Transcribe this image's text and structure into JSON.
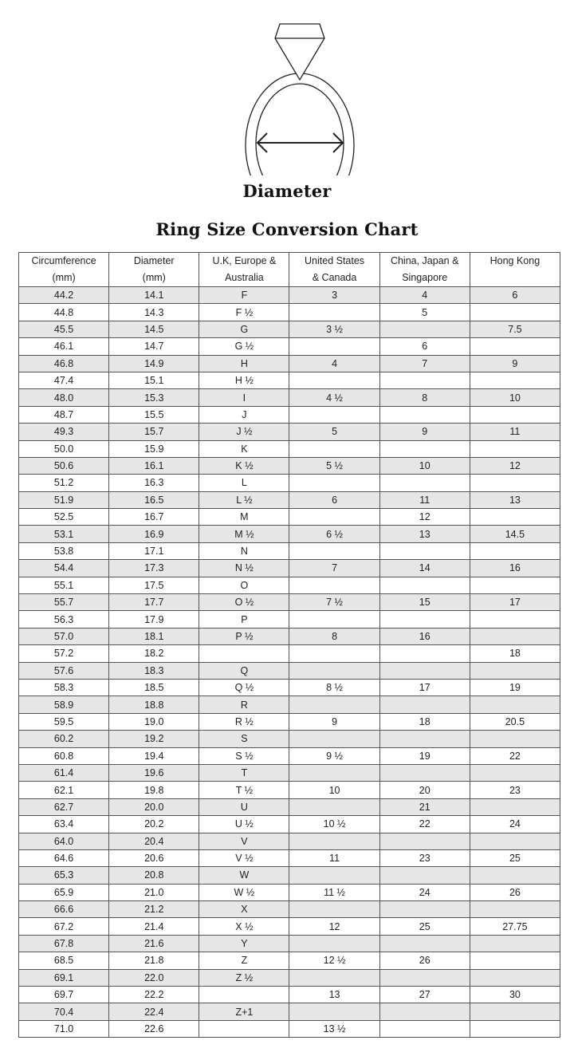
{
  "diagram_label": "Diameter",
  "title": "Ring Size Conversion Chart",
  "colors": {
    "stripe": "#e6e6e6",
    "border": "#555555"
  },
  "columns": [
    [
      "Circumference",
      "(mm)"
    ],
    [
      "Diameter",
      "(mm)"
    ],
    [
      "U.K, Europe &",
      "Australia"
    ],
    [
      "United States",
      "& Canada"
    ],
    [
      "China, Japan &",
      "Singapore"
    ],
    [
      "Hong Kong",
      ""
    ]
  ],
  "rows": [
    [
      "44.2",
      "14.1",
      "F",
      "3",
      "4",
      "6"
    ],
    [
      "44.8",
      "14.3",
      "F ½",
      "",
      "5",
      ""
    ],
    [
      "45.5",
      "14.5",
      "G",
      "3 ½",
      "",
      "7.5"
    ],
    [
      "46.1",
      "14.7",
      "G ½",
      "",
      "6",
      ""
    ],
    [
      "46.8",
      "14.9",
      "H",
      "4",
      "7",
      "9"
    ],
    [
      "47.4",
      "15.1",
      "H ½",
      "",
      "",
      ""
    ],
    [
      "48.0",
      "15.3",
      "I",
      "4 ½",
      "8",
      "10"
    ],
    [
      "48.7",
      "15.5",
      "J",
      "",
      "",
      ""
    ],
    [
      "49.3",
      "15.7",
      "J ½",
      "5",
      "9",
      "11"
    ],
    [
      "50.0",
      "15.9",
      "K",
      "",
      "",
      ""
    ],
    [
      "50.6",
      "16.1",
      "K ½",
      "5 ½",
      "10",
      "12"
    ],
    [
      "51.2",
      "16.3",
      "L",
      "",
      "",
      ""
    ],
    [
      "51.9",
      "16.5",
      "L ½",
      "6",
      "11",
      "13"
    ],
    [
      "52.5",
      "16.7",
      "M",
      "",
      "12",
      ""
    ],
    [
      "53.1",
      "16.9",
      "M ½",
      "6 ½",
      "13",
      "14.5"
    ],
    [
      "53.8",
      "17.1",
      "N",
      "",
      "",
      ""
    ],
    [
      "54.4",
      "17.3",
      "N ½",
      "7",
      "14",
      "16"
    ],
    [
      "55.1",
      "17.5",
      "O",
      "",
      "",
      ""
    ],
    [
      "55.7",
      "17.7",
      "O ½",
      "7 ½",
      "15",
      "17"
    ],
    [
      "56.3",
      "17.9",
      "P",
      "",
      "",
      ""
    ],
    [
      "57.0",
      "18.1",
      "P ½",
      "8",
      "16",
      ""
    ],
    [
      "57.2",
      "18.2",
      "",
      "",
      "",
      "18"
    ],
    [
      "57.6",
      "18.3",
      "Q",
      "",
      "",
      ""
    ],
    [
      "58.3",
      "18.5",
      "Q ½",
      "8 ½",
      "17",
      "19"
    ],
    [
      "58.9",
      "18.8",
      "R",
      "",
      "",
      ""
    ],
    [
      "59.5",
      "19.0",
      "R ½",
      "9",
      "18",
      "20.5"
    ],
    [
      "60.2",
      "19.2",
      "S",
      "",
      "",
      ""
    ],
    [
      "60.8",
      "19.4",
      "S ½",
      "9 ½",
      "19",
      "22"
    ],
    [
      "61.4",
      "19.6",
      "T",
      "",
      "",
      ""
    ],
    [
      "62.1",
      "19.8",
      "T ½",
      "10",
      "20",
      "23"
    ],
    [
      "62.7",
      "20.0",
      "U",
      "",
      "21",
      ""
    ],
    [
      "63.4",
      "20.2",
      "U ½",
      "10 ½",
      "22",
      "24"
    ],
    [
      "64.0",
      "20.4",
      "V",
      "",
      "",
      ""
    ],
    [
      "64.6",
      "20.6",
      "V ½",
      "11",
      "23",
      "25"
    ],
    [
      "65.3",
      "20.8",
      "W",
      "",
      "",
      ""
    ],
    [
      "65.9",
      "21.0",
      "W ½",
      "11 ½",
      "24",
      "26"
    ],
    [
      "66.6",
      "21.2",
      "X",
      "",
      "",
      ""
    ],
    [
      "67.2",
      "21.4",
      "X ½",
      "12",
      "25",
      "27.75"
    ],
    [
      "67.8",
      "21.6",
      "Y",
      "",
      "",
      ""
    ],
    [
      "68.5",
      "21.8",
      "Z",
      "12 ½",
      "26",
      ""
    ],
    [
      "69.1",
      "22.0",
      "Z ½",
      "",
      "",
      ""
    ],
    [
      "69.7",
      "22.2",
      "",
      "13",
      "27",
      "30"
    ],
    [
      "70.4",
      "22.4",
      "Z+1",
      "",
      "",
      ""
    ],
    [
      "71.0",
      "22.6",
      "",
      "13 ½",
      "",
      ""
    ]
  ]
}
